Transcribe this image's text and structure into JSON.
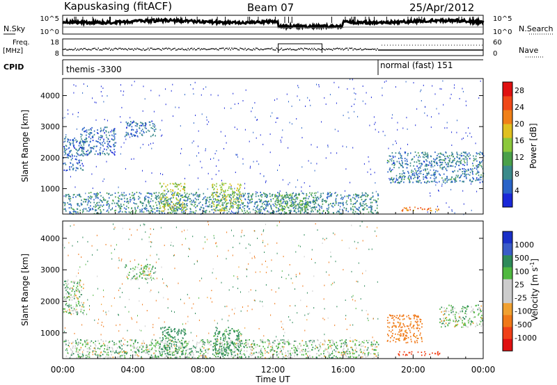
{
  "header": {
    "station": "Kapuskasing (fitACF)",
    "beam": "Beam 07",
    "date": "25/Apr/2012"
  },
  "left_labels": {
    "nsky": "N.Sky",
    "freq_top": "Freq.",
    "freq_unit": "[MHz]",
    "cpid": "CPID"
  },
  "right_labels": {
    "nsearch": "N.Search",
    "nave": "Nave"
  },
  "strip1": {
    "left_ticks": [
      "10^5",
      "10^0"
    ],
    "right_ticks": [
      "10^5",
      "10^0"
    ]
  },
  "strip2": {
    "left_ticks": [
      "18",
      "8"
    ],
    "right_ticks": [
      "60",
      "0"
    ]
  },
  "cpid_bar": {
    "left_mode": "themis -3300",
    "right_mode": "normal (fast) 151",
    "switch_time_ut": 18.0
  },
  "power_panel": {
    "ylabel": "Slant Range [km]",
    "y_ticks": [
      "1000",
      "2000",
      "3000",
      "4000"
    ],
    "colorbar_label": "Power [dB]",
    "colorbar_ticks": [
      "4",
      "8",
      "12",
      "16",
      "20",
      "24",
      "28"
    ],
    "colors": [
      "#1a28d8",
      "#2a64c8",
      "#3a8a8a",
      "#4aa04a",
      "#8cc83c",
      "#e0c020",
      "#f08018",
      "#f04818",
      "#e01010"
    ]
  },
  "velocity_panel": {
    "ylabel": "Slant Range [km]",
    "y_ticks": [
      "1000",
      "2000",
      "3000",
      "4000"
    ],
    "colorbar_label": "Velocity [m s^-1]",
    "colorbar_ticks": [
      "1000",
      "500",
      "100",
      "25",
      "-25",
      "-100",
      "-500",
      "-1000"
    ],
    "colors": [
      "#1a30c8",
      "#3a5cc8",
      "#2e8a5a",
      "#50b840",
      "#cccccc",
      "#cccccc",
      "#f0a030",
      "#f07818",
      "#f04018",
      "#e01010"
    ]
  },
  "x_axis": {
    "label": "Time UT",
    "ticks": [
      "00:00",
      "04:00",
      "08:00",
      "12:00",
      "16:00",
      "20:00",
      "00:00"
    ]
  },
  "chart_data": {
    "type": "heatmap",
    "x_range_ut_hours": [
      0,
      24
    ],
    "y_range_km": [
      180,
      4550
    ],
    "power_scale_db": [
      0,
      30
    ],
    "velocity_scale_ms": [
      -1000,
      1000
    ],
    "power_regions": [
      {
        "t0": 0.0,
        "t1": 18.0,
        "r0": 200,
        "r1": 900,
        "level": 8
      },
      {
        "t0": 5.5,
        "t1": 7.0,
        "r0": 200,
        "r1": 1200,
        "level": 16
      },
      {
        "t0": 8.5,
        "t1": 10.2,
        "r0": 300,
        "r1": 1200,
        "level": 16
      },
      {
        "t0": 12.0,
        "t1": 14.0,
        "r0": 300,
        "r1": 850,
        "level": 12
      },
      {
        "t0": 0.0,
        "t1": 1.2,
        "r0": 1600,
        "r1": 2700,
        "level": 6
      },
      {
        "t0": 1.0,
        "t1": 3.0,
        "r0": 2100,
        "r1": 3000,
        "level": 6
      },
      {
        "t0": 3.5,
        "t1": 5.3,
        "r0": 2700,
        "r1": 3200,
        "level": 6
      },
      {
        "t0": 18.5,
        "t1": 24.0,
        "r0": 1200,
        "r1": 2200,
        "level": 7
      },
      {
        "t0": 19.0,
        "t1": 21.5,
        "r0": 300,
        "r1": 420,
        "level": 22
      }
    ],
    "velocity_regions": [
      {
        "t0": 0.0,
        "t1": 18.0,
        "r0": 200,
        "r1": 800,
        "v": 25
      },
      {
        "t0": 5.5,
        "t1": 7.0,
        "r0": 300,
        "r1": 1200,
        "v": 100
      },
      {
        "t0": 8.5,
        "t1": 10.2,
        "r0": 300,
        "r1": 1200,
        "v": 100
      },
      {
        "t0": 0.0,
        "t1": 1.2,
        "r0": 1600,
        "r1": 2700,
        "v": 25
      },
      {
        "t0": 3.5,
        "t1": 5.3,
        "r0": 2700,
        "r1": 3200,
        "v": 25
      },
      {
        "t0": 18.5,
        "t1": 20.5,
        "r0": 700,
        "r1": 1600,
        "v": -100
      },
      {
        "t0": 19.0,
        "t1": 21.5,
        "r0": 300,
        "r1": 420,
        "v": -500
      },
      {
        "t0": 21.5,
        "t1": 24.0,
        "r0": 1200,
        "r1": 1900,
        "v": 25
      }
    ]
  }
}
